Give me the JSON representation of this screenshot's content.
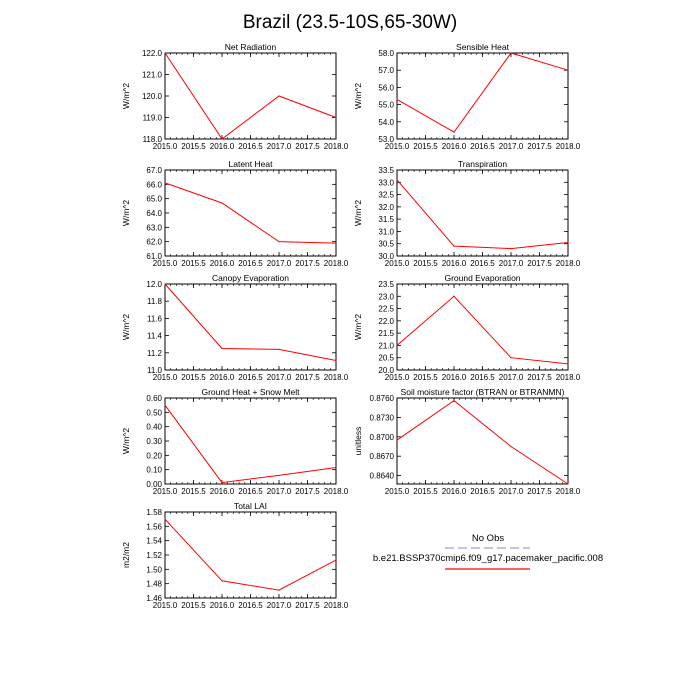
{
  "page": {
    "title": "Brazil (23.5-10S,65-30W)"
  },
  "chart_data": [
    {
      "type": "line",
      "title": "Net Radiation",
      "ylabel": "W/m^2",
      "x": [
        2015,
        2016,
        2017,
        2018
      ],
      "values": [
        122.0,
        118.0,
        120.0,
        119.0
      ],
      "xlim": [
        2015,
        2018
      ],
      "ylim": [
        118,
        122
      ],
      "xticks": [
        "2015.0",
        "2015.5",
        "2016.0",
        "2016.5",
        "2017.0",
        "2017.5",
        "2018.0"
      ],
      "yticks": [
        "118.0",
        "119.0",
        "120.0",
        "121.0",
        "122.0"
      ]
    },
    {
      "type": "line",
      "title": "Sensible Heat",
      "ylabel": "W/m^2",
      "x": [
        2015,
        2016,
        2017,
        2018
      ],
      "values": [
        55.3,
        53.4,
        58.0,
        57.0
      ],
      "xlim": [
        2015,
        2018
      ],
      "ylim": [
        53,
        58
      ],
      "xticks": [
        "2015.0",
        "2015.5",
        "2016.0",
        "2016.5",
        "2017.0",
        "2017.5",
        "2018.0"
      ],
      "yticks": [
        "53.0",
        "54.0",
        "55.0",
        "56.0",
        "57.0",
        "58.0"
      ]
    },
    {
      "type": "line",
      "title": "Latent Heat",
      "ylabel": "W/m^2",
      "x": [
        2015,
        2016,
        2017,
        2018
      ],
      "values": [
        66.1,
        64.7,
        62.0,
        61.9
      ],
      "xlim": [
        2015,
        2018
      ],
      "ylim": [
        61,
        67
      ],
      "xticks": [
        "2015.0",
        "2015.5",
        "2016.0",
        "2016.5",
        "2017.0",
        "2017.5",
        "2018.0"
      ],
      "yticks": [
        "61.0",
        "62.0",
        "63.0",
        "64.0",
        "65.0",
        "66.0",
        "67.0"
      ]
    },
    {
      "type": "line",
      "title": "Transpiration",
      "ylabel": "W/m^2",
      "x": [
        2015,
        2016,
        2017,
        2018
      ],
      "values": [
        33.1,
        30.4,
        30.3,
        30.55
      ],
      "xlim": [
        2015,
        2018
      ],
      "ylim": [
        30,
        33.5
      ],
      "xticks": [
        "2015.0",
        "2015.5",
        "2016.0",
        "2016.5",
        "2017.0",
        "2017.5",
        "2018.0"
      ],
      "yticks": [
        "30.0",
        "30.5",
        "31.0",
        "31.5",
        "32.0",
        "32.5",
        "33.0",
        "33.5"
      ]
    },
    {
      "type": "line",
      "title": "Canopy Evaporation",
      "ylabel": "W/m^2",
      "x": [
        2015,
        2016,
        2017,
        2018
      ],
      "values": [
        12.0,
        11.25,
        11.24,
        11.11
      ],
      "xlim": [
        2015,
        2018
      ],
      "ylim": [
        11,
        12
      ],
      "xticks": [
        "2015.0",
        "2015.5",
        "2016.0",
        "2016.5",
        "2017.0",
        "2017.5",
        "2018.0"
      ],
      "yticks": [
        "11.0",
        "11.2",
        "11.4",
        "11.6",
        "11.8",
        "12.0"
      ]
    },
    {
      "type": "line",
      "title": "Ground Evaporation",
      "ylabel": "W/m^2",
      "x": [
        2015,
        2016,
        2017,
        2018
      ],
      "values": [
        21.0,
        23.0,
        20.5,
        20.25
      ],
      "xlim": [
        2015,
        2018
      ],
      "ylim": [
        20,
        23.5
      ],
      "xticks": [
        "2015.0",
        "2015.5",
        "2016.0",
        "2016.5",
        "2017.0",
        "2017.5",
        "2018.0"
      ],
      "yticks": [
        "20.0",
        "20.5",
        "21.0",
        "21.5",
        "22.0",
        "22.5",
        "23.0",
        "23.5"
      ]
    },
    {
      "type": "line",
      "title": "Ground Heat + Snow Melt",
      "ylabel": "W/m^2",
      "x": [
        2015,
        2016,
        2017,
        2018
      ],
      "values": [
        0.55,
        0.01,
        0.06,
        0.115
      ],
      "xlim": [
        2015,
        2018
      ],
      "ylim": [
        0,
        0.6
      ],
      "xticks": [
        "2015.0",
        "2015.5",
        "2016.0",
        "2016.5",
        "2017.0",
        "2017.5",
        "2018.0"
      ],
      "yticks": [
        "0.00",
        "0.10",
        "0.20",
        "0.30",
        "0.40",
        "0.50",
        "0.60"
      ]
    },
    {
      "type": "line",
      "title": "Soil moisture factor (BTRAN or BTRANMN)",
      "ylabel": "unitless",
      "x": [
        2015,
        2016,
        2017,
        2018
      ],
      "values": [
        0.8695,
        0.8756,
        0.8685,
        0.8627
      ],
      "xlim": [
        2015,
        2018
      ],
      "ylim": [
        0.8627,
        0.876
      ],
      "xticks": [
        "2015.0",
        "2015.5",
        "2016.0",
        "2016.5",
        "2017.0",
        "2017.5",
        "2018.0"
      ],
      "yticks": [
        "0.8640",
        "0.8670",
        "0.8700",
        "0.8730",
        "0.8760"
      ],
      "ytick_values": [
        0.864,
        0.867,
        0.87,
        0.873,
        0.876
      ]
    },
    {
      "type": "line",
      "title": "Total LAI",
      "ylabel": "m2/m2",
      "x": [
        2015,
        2016,
        2017,
        2018
      ],
      "values": [
        1.57,
        1.484,
        1.471,
        1.513
      ],
      "xlim": [
        2015,
        2018
      ],
      "ylim": [
        1.46,
        1.58
      ],
      "xticks": [
        "2015.0",
        "2015.5",
        "2016.0",
        "2016.5",
        "2017.0",
        "2017.5",
        "2018.0"
      ],
      "yticks": [
        "1.46",
        "1.48",
        "1.50",
        "1.52",
        "1.54",
        "1.56",
        "1.58"
      ]
    }
  ],
  "legend": {
    "entries": [
      {
        "label": "No Obs",
        "color": "#b0b0d8",
        "style": "dashed"
      },
      {
        "label": "b.e21.BSSP370cmip6.f09_g17.pacemaker_pacific.008",
        "color": "#ff0000",
        "style": "solid"
      }
    ]
  },
  "colors": {
    "series": "#ff0000",
    "axis": "#000000"
  }
}
